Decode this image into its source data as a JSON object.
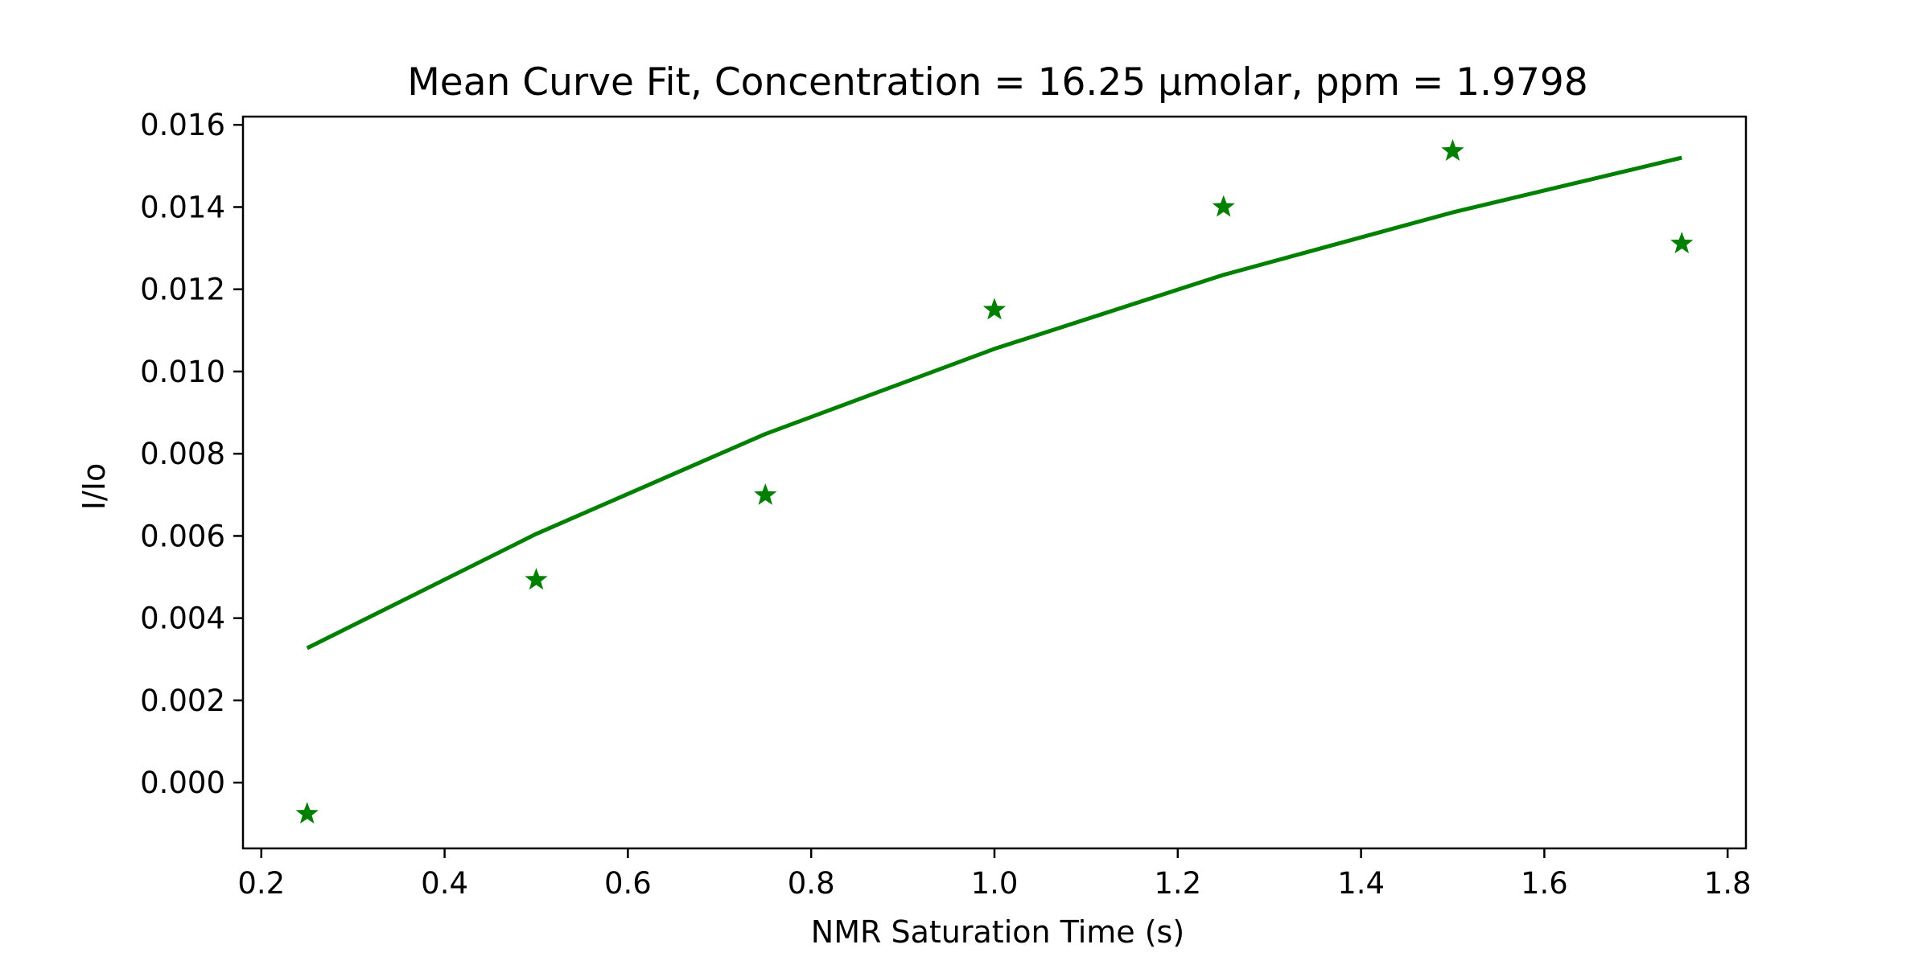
{
  "chart_data": {
    "type": "scatter",
    "title": "Mean Curve Fit, Concentration = 16.25 µmolar, ppm = 1.9798",
    "xlabel": "NMR Saturation Time (s)",
    "ylabel": "I/Io",
    "xlim": [
      0.18,
      1.82
    ],
    "ylim": [
      -0.0016,
      0.0162
    ],
    "x_ticks": [
      0.2,
      0.4,
      0.6,
      0.8,
      1.0,
      1.2,
      1.4,
      1.6,
      1.8
    ],
    "x_tick_labels": [
      "0.2",
      "0.4",
      "0.6",
      "0.8",
      "1.0",
      "1.2",
      "1.4",
      "1.6",
      "1.8"
    ],
    "y_ticks": [
      0.0,
      0.002,
      0.004,
      0.006,
      0.008,
      0.01,
      0.012,
      0.014,
      0.016
    ],
    "y_tick_labels": [
      "0.000",
      "0.002",
      "0.004",
      "0.006",
      "0.008",
      "0.010",
      "0.012",
      "0.014",
      "0.016"
    ],
    "grid": false,
    "color": "#008000",
    "series": [
      {
        "kind": "scatter",
        "marker": "star",
        "x": [
          0.25,
          0.5,
          0.75,
          1.0,
          1.25,
          1.5,
          1.75
        ],
        "y": [
          -0.00076,
          0.00493,
          0.00699,
          0.0115,
          0.014,
          0.01536,
          0.01311
        ]
      },
      {
        "kind": "line",
        "x": [
          0.25,
          0.5,
          0.75,
          1.0,
          1.25,
          1.5,
          1.75
        ],
        "y": [
          0.00327,
          0.00605,
          0.00848,
          0.01055,
          0.01235,
          0.01387,
          0.0152
        ]
      }
    ]
  }
}
